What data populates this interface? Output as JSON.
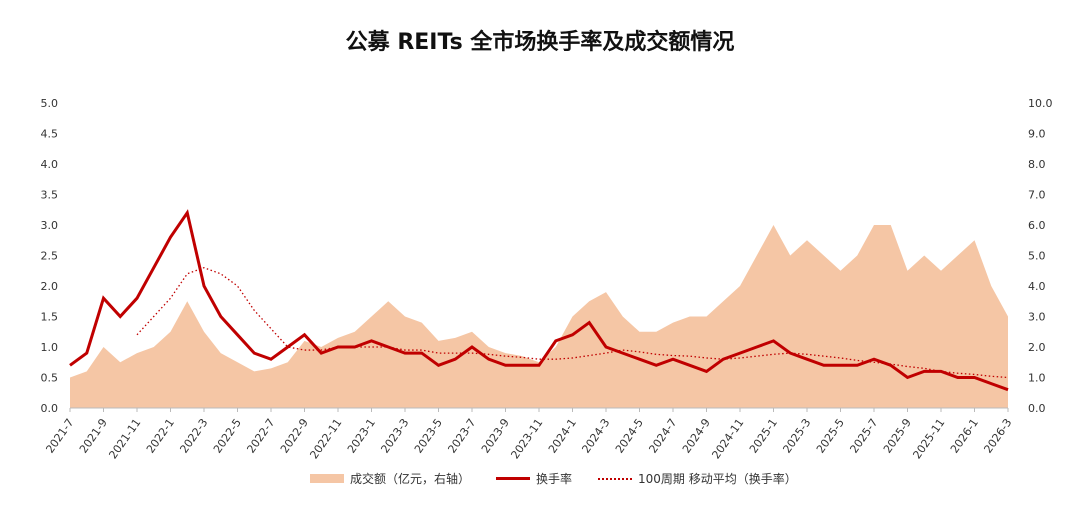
{
  "chart_data": {
    "type": "line",
    "title": "公募 REITs 全市场换手率及成交额情况",
    "x": [
      "2021-7",
      "2021-8",
      "2021-9",
      "2021-10",
      "2021-11",
      "2021-12",
      "2022-1",
      "2022-2",
      "2022-3",
      "2022-4",
      "2022-5",
      "2022-6",
      "2022-7",
      "2022-8",
      "2022-9",
      "2022-10",
      "2022-11",
      "2022-12",
      "2023-1",
      "2023-2",
      "2023-3",
      "2023-4",
      "2023-5",
      "2023-6",
      "2023-7",
      "2023-8",
      "2023-9",
      "2023-10",
      "2023-11",
      "2023-12",
      "2024-1",
      "2024-2",
      "2024-3",
      "2024-4",
      "2024-5",
      "2024-6",
      "2024-7",
      "2024-8",
      "2024-9",
      "2024-10",
      "2024-11",
      "2024-12",
      "2025-1",
      "2025-2",
      "2025-3",
      "2025-4",
      "2025-5",
      "2025-6",
      "2025-7",
      "2025-8",
      "2025-9",
      "2025-10",
      "2025-11",
      "2025-12",
      "2026-1",
      "2026-2",
      "2026-3"
    ],
    "xticks": [
      "2021-7",
      "2021-9",
      "2021-11",
      "2022-1",
      "2022-3",
      "2022-5",
      "2022-7",
      "2022-9",
      "2022-11",
      "2023-1",
      "2023-3",
      "2023-5",
      "2023-7",
      "2023-9",
      "2023-11",
      "2024-1",
      "2024-3",
      "2024-5",
      "2024-7",
      "2024-9",
      "2024-11",
      "2025-1",
      "2025-3",
      "2025-5",
      "2025-7",
      "2025-9",
      "2025-11",
      "2026-1",
      "2026-3"
    ],
    "ylim_left": [
      0,
      5
    ],
    "yticks_left": [
      "0.0",
      "0.5",
      "1.0",
      "1.5",
      "2.0",
      "2.5",
      "3.0",
      "3.5",
      "4.0",
      "4.5",
      "5.0"
    ],
    "ylim_right": [
      0,
      10
    ],
    "yticks_right": [
      "0.0",
      "1.0",
      "2.0",
      "3.0",
      "4.0",
      "5.0",
      "6.0",
      "7.0",
      "8.0",
      "9.0",
      "10.0"
    ],
    "series": [
      {
        "name": "成交额（亿元，右轴）",
        "type": "area",
        "axis": "right",
        "color": "#f5c6a5",
        "values": [
          1.0,
          1.2,
          2.0,
          1.5,
          1.8,
          2.0,
          2.5,
          3.5,
          2.5,
          1.8,
          1.5,
          1.2,
          1.3,
          1.5,
          2.2,
          2.0,
          2.3,
          2.5,
          3.0,
          3.5,
          3.0,
          2.8,
          2.2,
          2.3,
          2.5,
          2.0,
          1.8,
          1.7,
          1.5,
          2.0,
          3.0,
          3.5,
          3.8,
          3.0,
          2.5,
          2.5,
          2.8,
          3.0,
          3.0,
          3.5,
          4.0,
          5.0,
          6.0,
          5.0,
          5.5,
          5.0,
          4.5,
          5.0,
          6.0,
          6.0,
          4.5,
          5.0,
          4.5,
          5.0,
          5.5,
          4.0,
          3.0
        ]
      },
      {
        "name": "换手率",
        "type": "line",
        "axis": "left",
        "color": "#c00000",
        "values": [
          0.7,
          0.9,
          1.8,
          1.5,
          1.8,
          2.3,
          2.8,
          3.2,
          2.0,
          1.5,
          1.2,
          0.9,
          0.8,
          1.0,
          1.2,
          0.9,
          1.0,
          1.0,
          1.1,
          1.0,
          0.9,
          0.9,
          0.7,
          0.8,
          1.0,
          0.8,
          0.7,
          0.7,
          0.7,
          1.1,
          1.2,
          1.4,
          1.0,
          0.9,
          0.8,
          0.7,
          0.8,
          0.7,
          0.6,
          0.8,
          0.9,
          1.0,
          1.1,
          0.9,
          0.8,
          0.7,
          0.7,
          0.7,
          0.8,
          0.7,
          0.5,
          0.6,
          0.6,
          0.5,
          0.5,
          0.4,
          0.3
        ]
      },
      {
        "name": "100周期 移动平均（换手率）",
        "type": "dotted",
        "axis": "left",
        "color": "#c00000",
        "values": [
          null,
          null,
          null,
          null,
          1.2,
          1.5,
          1.8,
          2.2,
          2.3,
          2.2,
          2.0,
          1.6,
          1.3,
          1.0,
          0.95,
          0.95,
          1.0,
          1.0,
          1.0,
          1.0,
          0.95,
          0.95,
          0.9,
          0.9,
          0.9,
          0.88,
          0.85,
          0.83,
          0.8,
          0.8,
          0.82,
          0.86,
          0.9,
          0.95,
          0.92,
          0.88,
          0.86,
          0.85,
          0.82,
          0.8,
          0.82,
          0.85,
          0.88,
          0.9,
          0.88,
          0.85,
          0.82,
          0.78,
          0.75,
          0.72,
          0.68,
          0.65,
          0.6,
          0.57,
          0.55,
          0.52,
          0.5
        ]
      }
    ]
  }
}
